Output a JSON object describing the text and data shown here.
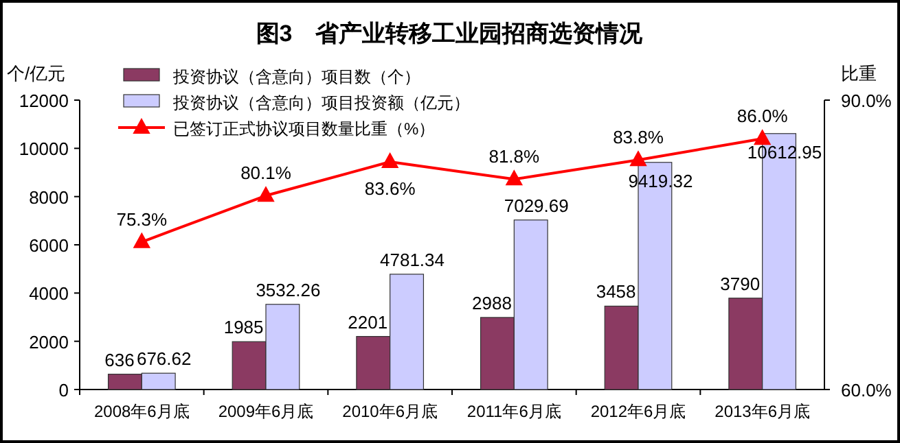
{
  "chart_data": {
    "type": "bar",
    "title": "图3　省产业转移工业园招商选资情况",
    "ylabel": "个/亿元",
    "y2label": "比重",
    "categories": [
      "2008年6月底",
      "2009年6月底",
      "2010年6月底",
      "2011年6月底",
      "2012年6月底",
      "2013年6月底"
    ],
    "series": [
      {
        "name": "投资协议（含意向）项目数（个）",
        "color": "#8b3a62",
        "values": [
          636,
          1985,
          2201,
          2988,
          3458,
          3790
        ]
      },
      {
        "name": "投资协议（含意向）项目投资额（亿元）",
        "color": "#ccccff",
        "values": [
          676.62,
          3532.26,
          4781.34,
          7029.69,
          9419.32,
          10612.95
        ]
      },
      {
        "name": "已签订正式协议项目数量比重（%）",
        "type": "line",
        "axis": "y2",
        "color": "#ff0000",
        "marker": "triangle",
        "values": [
          75.3,
          80.1,
          83.6,
          81.8,
          83.8,
          86.0
        ],
        "value_labels": [
          "75.3%",
          "80.1%",
          "83.6%",
          "81.8%",
          "83.8%",
          "86.0%"
        ]
      }
    ],
    "ylim": [
      0,
      12000
    ],
    "yticks": [
      0,
      2000,
      4000,
      6000,
      8000,
      10000,
      12000
    ],
    "y2lim": [
      60,
      90
    ],
    "y2ticks": [
      {
        "value": 60,
        "label": "60.0%"
      },
      {
        "value": 90,
        "label": "90.0%"
      }
    ],
    "data_labels": true,
    "legend": "top left",
    "grid": false
  }
}
